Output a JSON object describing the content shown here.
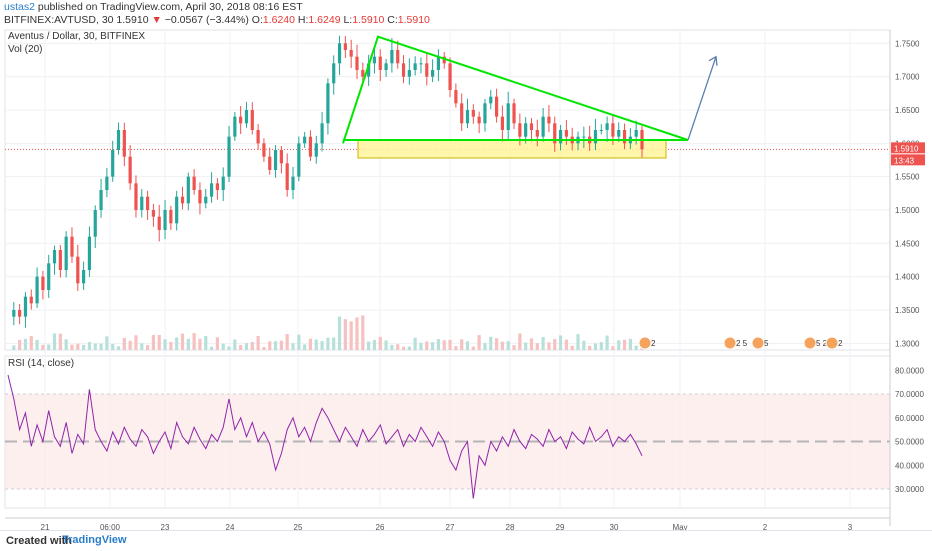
{
  "header": {
    "author": "ustas2",
    "published": "published on TradingView.com, April 30, 2018 08:16 EST",
    "symbol": "BITFINEX:AVTUSD, 30",
    "last": "1.5910",
    "arrow": "▼",
    "change": "−0.0567 (−3.44%)",
    "o_label": "O:",
    "o_value": "1.6240",
    "h_label": "H:",
    "h_value": "1.6249",
    "l_label": "L:",
    "l_value": "1.5910",
    "c_label": "C:",
    "c_value": "1.5910"
  },
  "price_pane": {
    "title": "Aventus / Dollar, 30, BITFINEX",
    "volume_label": "Vol (20)",
    "price_tag": "1.5910",
    "countdown_tag": "13:43"
  },
  "rsi_pane": {
    "title": "RSI (14, close)"
  },
  "event_badges": [
    "2",
    "2 5",
    "5",
    "5 2",
    "2"
  ],
  "footer": {
    "created": "Created with",
    "brand": "TradingView"
  },
  "colors": {
    "up": "#26a69a",
    "down": "#ef5350",
    "trend": "#00e600",
    "zone_fill": "#fff59d",
    "projection": "#5b7fb0",
    "rsi": "#8e24aa",
    "rsi_band": "#fde4e4"
  },
  "chart_data": [
    {
      "type": "candlestick",
      "title": "Aventus / Dollar, 30, BITFINEX",
      "x_tick_labels": [
        "21",
        "06:00",
        "23",
        "24",
        "25",
        "26",
        "27",
        "28",
        "29",
        "30",
        "May",
        "2",
        "3"
      ],
      "y_tick_labels": [
        "1.7500",
        "1.7000",
        "1.6500",
        "1.6000",
        "1.5500",
        "1.5000",
        "1.4500",
        "1.4000",
        "1.3500",
        "1.3000"
      ],
      "ylim": [
        1.29,
        1.77
      ],
      "last_price": 1.591,
      "price_path": [
        1.34,
        1.35,
        1.34,
        1.37,
        1.36,
        1.4,
        1.38,
        1.42,
        1.44,
        1.41,
        1.46,
        1.43,
        1.39,
        1.41,
        1.46,
        1.5,
        1.53,
        1.55,
        1.59,
        1.62,
        1.58,
        1.54,
        1.5,
        1.52,
        1.5,
        1.49,
        1.47,
        1.5,
        1.48,
        1.52,
        1.51,
        1.55,
        1.53,
        1.51,
        1.52,
        1.54,
        1.53,
        1.55,
        1.61,
        1.64,
        1.63,
        1.65,
        1.62,
        1.6,
        1.58,
        1.56,
        1.59,
        1.57,
        1.53,
        1.55,
        1.6,
        1.61,
        1.58,
        1.6,
        1.63,
        1.69,
        1.72,
        1.75,
        1.74,
        1.73,
        1.71,
        1.7,
        1.72,
        1.73,
        1.71,
        1.72,
        1.74,
        1.72,
        1.7,
        1.71,
        1.72,
        1.72,
        1.7,
        1.71,
        1.73,
        1.72,
        1.68,
        1.66,
        1.63,
        1.65,
        1.64,
        1.63,
        1.66,
        1.67,
        1.64,
        1.62,
        1.66,
        1.63,
        1.61,
        1.63,
        1.62,
        1.61,
        1.64,
        1.63,
        1.6,
        1.62,
        1.61,
        1.6,
        1.61,
        1.61,
        1.6,
        1.62,
        1.62,
        1.63,
        1.61,
        1.62,
        1.6,
        1.61,
        1.62,
        1.591
      ],
      "drawings": {
        "upper_trendline": {
          "from": [
            "Apr 25",
            1.6
          ],
          "peak": [
            "Apr 26",
            1.76
          ],
          "to": [
            "Apr 30",
            1.605
          ]
        },
        "support_line": 1.605,
        "support_zone": [
          1.578,
          1.605
        ],
        "projection_arrow_target": 1.73
      }
    },
    {
      "type": "line",
      "title": "RSI (14, close)",
      "y_tick_labels": [
        "80.0000",
        "70.0000",
        "60.0000",
        "50.0000",
        "40.0000",
        "30.0000"
      ],
      "ylim": [
        22,
        86
      ],
      "band": [
        30,
        70
      ],
      "midline": 50,
      "rsi_path": [
        78,
        68,
        55,
        62,
        48,
        57,
        50,
        63,
        52,
        48,
        58,
        45,
        53,
        49,
        72,
        55,
        50,
        46,
        54,
        49,
        56,
        51,
        48,
        55,
        52,
        45,
        50,
        54,
        47,
        58,
        52,
        49,
        56,
        51,
        47,
        53,
        50,
        56,
        68,
        55,
        60,
        52,
        58,
        50,
        54,
        49,
        38,
        45,
        55,
        60,
        52,
        56,
        50,
        58,
        64,
        60,
        55,
        50,
        56,
        52,
        48,
        55,
        50,
        53,
        57,
        49,
        52,
        55,
        48,
        53,
        50,
        56,
        52,
        48,
        54,
        50,
        42,
        38,
        46,
        50,
        26,
        44,
        40,
        50,
        46,
        52,
        48,
        55,
        50,
        47,
        53,
        51,
        48,
        55,
        50,
        52,
        47,
        54,
        51,
        49,
        56,
        50,
        52,
        55,
        48,
        52,
        50,
        53,
        49,
        44
      ]
    }
  ]
}
